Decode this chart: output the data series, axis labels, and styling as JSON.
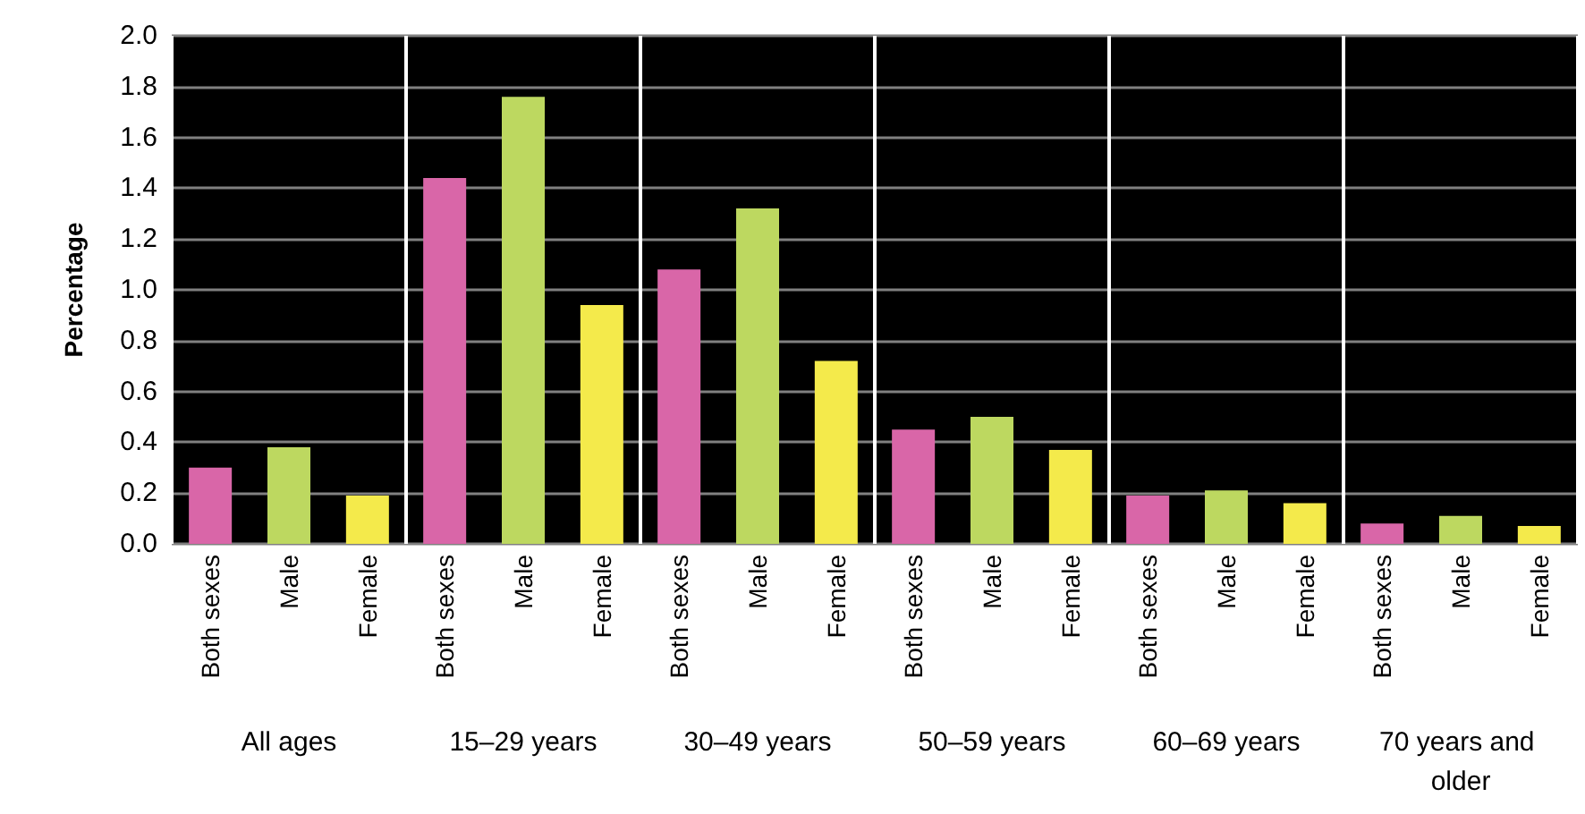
{
  "chart_data": {
    "type": "bar",
    "ylabel": "Percentage",
    "categories": [
      "All ages",
      "15–29 years",
      "30–49 years",
      "50–59 years",
      "60–69 years",
      "70 years and older"
    ],
    "series": [
      {
        "name": "Both sexes",
        "color": "#d966a8",
        "values": [
          0.3,
          1.44,
          1.08,
          0.45,
          0.19,
          0.08
        ]
      },
      {
        "name": "Male",
        "color": "#bdd860",
        "values": [
          0.38,
          1.76,
          1.32,
          0.5,
          0.21,
          0.11
        ]
      },
      {
        "name": "Female",
        "color": "#f4ea4b",
        "values": [
          0.19,
          0.94,
          0.72,
          0.37,
          0.16,
          0.07
        ]
      }
    ],
    "ylim": [
      0,
      2.0
    ],
    "yticks": [
      {
        "value": 0,
        "label": "0.0"
      },
      {
        "value": 0.2,
        "label": "0.2"
      },
      {
        "value": 0.4,
        "label": "0.4"
      },
      {
        "value": 0.6,
        "label": "0.6"
      },
      {
        "value": 0.8,
        "label": "0.8"
      },
      {
        "value": 1.0,
        "label": "1.0"
      },
      {
        "value": 1.2,
        "label": "1.2"
      },
      {
        "value": 1.4,
        "label": "1.4"
      },
      {
        "value": 1.6,
        "label": "1.6"
      },
      {
        "value": 1.8,
        "label": "1.8"
      },
      {
        "value": 2.0,
        "label": "2.0"
      }
    ],
    "grid": "y",
    "legend": false
  }
}
